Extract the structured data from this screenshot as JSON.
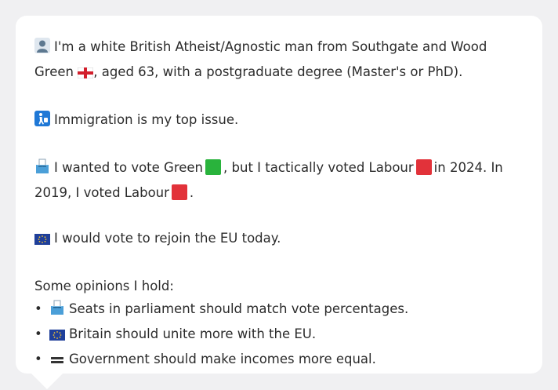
{
  "profile": {
    "line1_part1": "I'm a white British Atheist/Agnostic man from Southgate and Wood Green",
    "line1_part2": ", aged 63, with a postgraduate degree (Master's or PhD).",
    "top_issue": "Immigration is my top issue.",
    "vote_a": "I wanted to vote Green",
    "vote_b": ", but I tactically voted Labour",
    "vote_c": "in 2024. In 2019, I voted Labour",
    "vote_d": ".",
    "eu": "I would vote to rejoin the EU today.",
    "opinions_heading": "Some opinions I hold:",
    "opinions": [
      "Seats in parliament should match vote percentages.",
      "Britain should unite more with the EU.",
      "Government should make incomes more equal."
    ]
  },
  "icons": {
    "person": "person-icon",
    "england_flag": "england-flag-icon",
    "immigration": "immigration-icon",
    "ballot": "ballot-box-icon",
    "eu_flag": "eu-flag-icon",
    "equals": "equals-icon"
  },
  "colors": {
    "green_party": "#29b33c",
    "labour": "#e2323a",
    "eu_blue": "#1f3f9a",
    "eu_gold": "#f4c430"
  }
}
